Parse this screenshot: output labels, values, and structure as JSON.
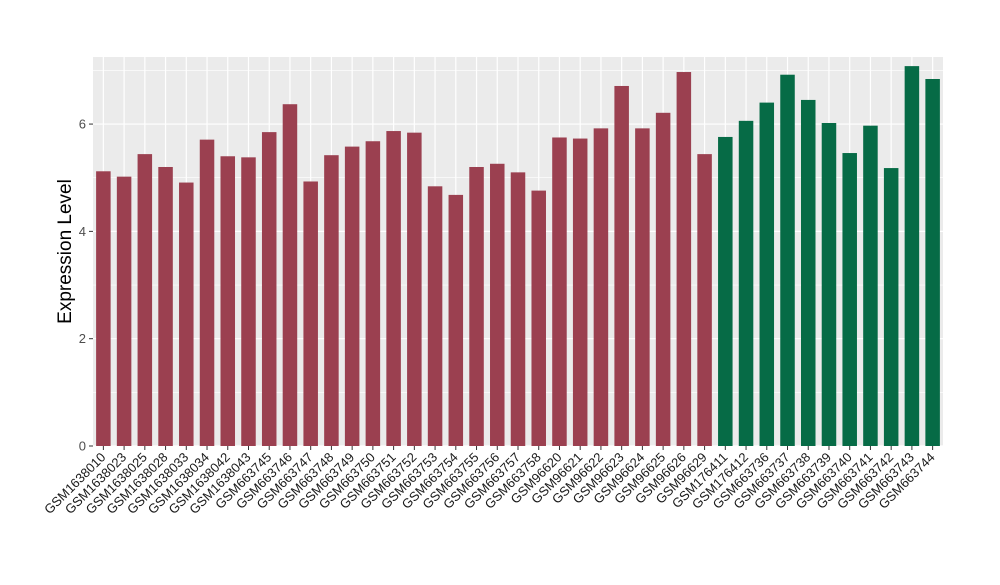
{
  "chart_data": {
    "type": "bar",
    "title": "",
    "xlabel": "",
    "ylabel": "Expression Level",
    "ylim": [
      0,
      7.25
    ],
    "yticks": [
      0,
      2,
      4,
      6
    ],
    "grid": true,
    "categories": [
      "GSM1638010",
      "GSM1638023",
      "GSM1638025",
      "GSM1638028",
      "GSM1638033",
      "GSM1638034",
      "GSM1638042",
      "GSM1638043",
      "GSM663745",
      "GSM663746",
      "GSM663747",
      "GSM663748",
      "GSM663749",
      "GSM663750",
      "GSM663751",
      "GSM663752",
      "GSM663753",
      "GSM663754",
      "GSM663755",
      "GSM663756",
      "GSM663757",
      "GSM663758",
      "GSM96620",
      "GSM96621",
      "GSM96622",
      "GSM96623",
      "GSM96624",
      "GSM96625",
      "GSM96626",
      "GSM96629",
      "GSM176411",
      "GSM176412",
      "GSM663736",
      "GSM663737",
      "GSM663738",
      "GSM663739",
      "GSM663740",
      "GSM663741",
      "GSM663742",
      "GSM663743",
      "GSM663744"
    ],
    "values": [
      5.12,
      5.02,
      5.44,
      5.2,
      4.91,
      5.71,
      5.4,
      5.38,
      5.85,
      6.37,
      4.93,
      5.42,
      5.58,
      5.68,
      5.87,
      5.84,
      4.84,
      4.68,
      5.2,
      5.26,
      5.1,
      4.76,
      5.75,
      5.73,
      5.92,
      6.71,
      5.92,
      6.21,
      6.97,
      5.44,
      5.76,
      6.06,
      6.4,
      6.92,
      6.45,
      6.02,
      5.46,
      5.97,
      5.18,
      7.08,
      6.84
    ],
    "groups": [
      0,
      0,
      0,
      0,
      0,
      0,
      0,
      0,
      0,
      0,
      0,
      0,
      0,
      0,
      0,
      0,
      0,
      0,
      0,
      0,
      0,
      0,
      0,
      0,
      0,
      0,
      0,
      0,
      0,
      0,
      1,
      1,
      1,
      1,
      1,
      1,
      1,
      1,
      1,
      1,
      1
    ],
    "colors": [
      "#9b4050",
      "#066b46"
    ],
    "panel_bg": "#ebebeb",
    "grid_color": "#ffffff"
  }
}
